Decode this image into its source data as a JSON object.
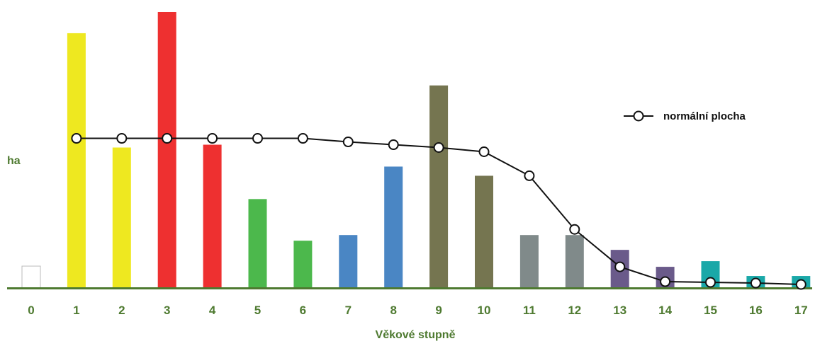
{
  "chart_data": {
    "type": "bar",
    "title": "",
    "xlabel": "Věkové stupně",
    "ylabel": "ha",
    "categories": [
      "0",
      "1",
      "2",
      "3",
      "4",
      "5",
      "6",
      "7",
      "8",
      "9",
      "10",
      "11",
      "12",
      "13",
      "14",
      "15",
      "16",
      "17"
    ],
    "values": [
      31,
      361,
      199,
      391,
      203,
      126,
      67,
      75,
      172,
      287,
      159,
      75,
      75,
      54,
      30,
      38,
      17,
      17
    ],
    "bar_colors": [
      "#ffffff",
      "#eee820",
      "#eee820",
      "#ee3030",
      "#ee3030",
      "#4cb84c",
      "#4cb84c",
      "#4a86c4",
      "#4a86c4",
      "#757550",
      "#757550",
      "#808a8a",
      "#808a8a",
      "#6a5a8a",
      "#6a5a8a",
      "#1aa8a8",
      "#1aa8a8",
      "#1aa8a8"
    ],
    "bar_stroke_first": "#bbbbbb",
    "series": [
      {
        "name": "normální plocha",
        "type": "line",
        "values": [
          null,
          212,
          212,
          212,
          212,
          212,
          212,
          207,
          203,
          199,
          193,
          159,
          83,
          30,
          9,
          8,
          7,
          5
        ]
      }
    ],
    "ylim": [
      0,
      392
    ],
    "legend_position": "right",
    "axis_color": "#4e7a30",
    "tick_color": "#4e7a30",
    "grid": false
  }
}
